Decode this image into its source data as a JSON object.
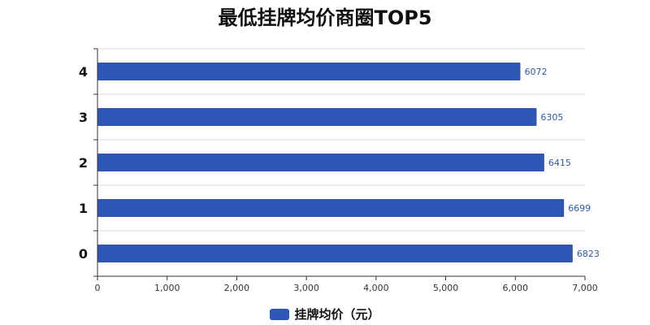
{
  "chart_data": {
    "type": "bar",
    "orientation": "horizontal",
    "title": "最低挂牌均价商圈TOP5",
    "categories": [
      "0",
      "1",
      "2",
      "3",
      "4"
    ],
    "series": [
      {
        "name": "挂牌均价（元）",
        "values": [
          6823,
          6699,
          6415,
          6305,
          6072
        ]
      }
    ],
    "xlim": [
      0,
      7000
    ],
    "x_ticks": [
      "0",
      "1,000",
      "2,000",
      "3,000",
      "4,000",
      "5,000",
      "6,000",
      "7,000"
    ],
    "x_tick_values": [
      0,
      1000,
      2000,
      3000,
      4000,
      5000,
      6000,
      7000
    ],
    "grid": "horizontal",
    "legend": "bottom",
    "bar_color": "#2e57b5"
  }
}
